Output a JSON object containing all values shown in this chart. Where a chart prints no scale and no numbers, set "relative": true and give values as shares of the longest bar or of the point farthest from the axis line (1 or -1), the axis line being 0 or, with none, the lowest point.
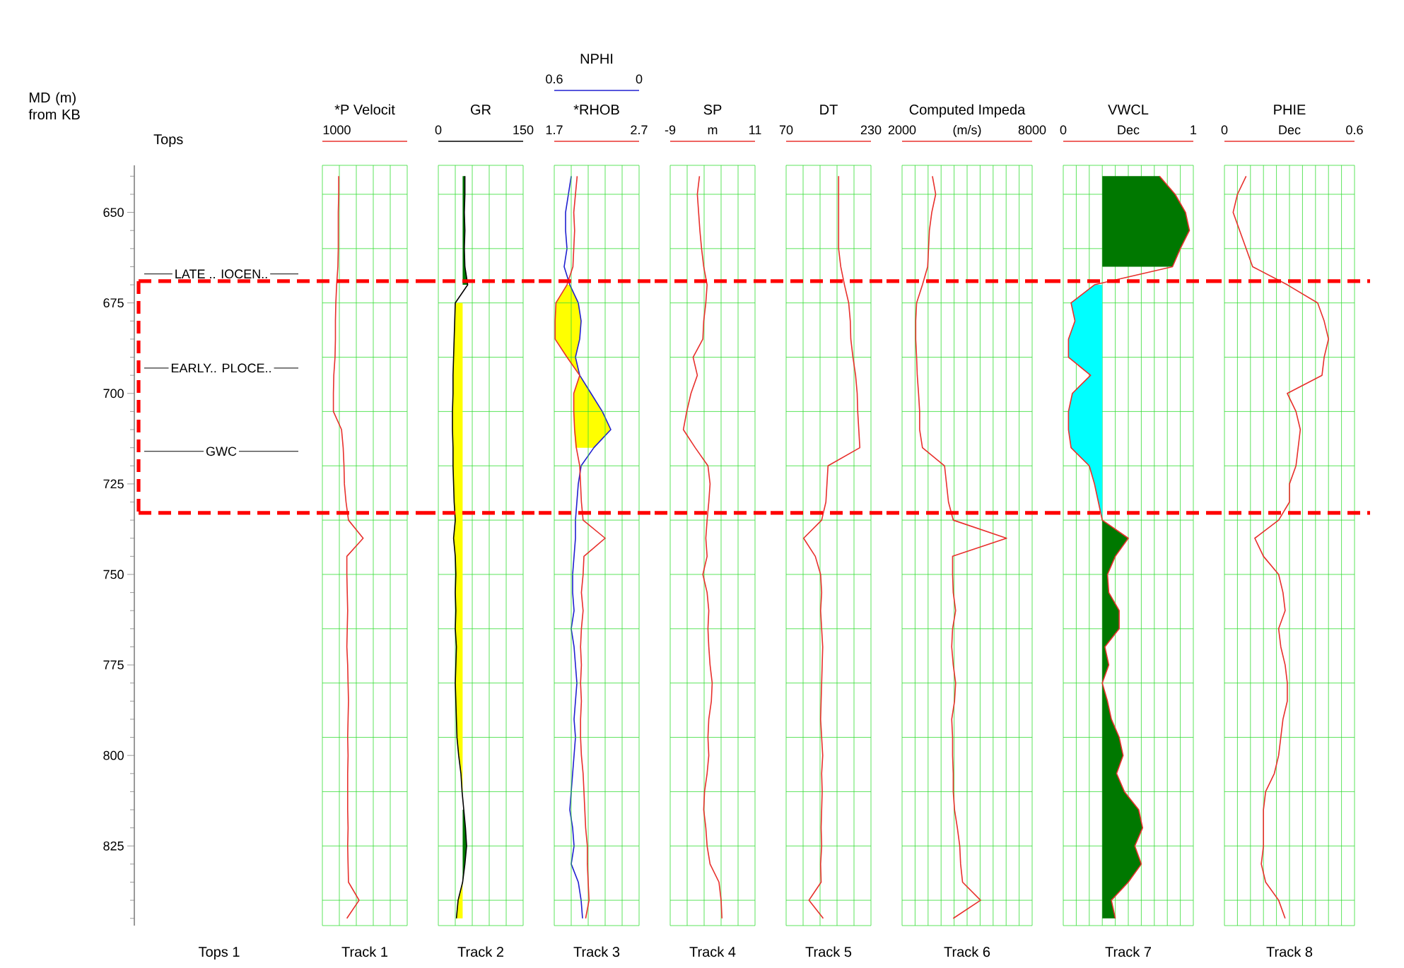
{
  "chart_data": [
    {
      "type": "other",
      "title": "Tops",
      "xlabel": "Tops 1"
    },
    {
      "type": "line",
      "orientation": "horizontal",
      "relative": true,
      "title": "*P Velocit",
      "xlabel": "Track 1",
      "ylabel": "MD (m) from KB",
      "annotations": [
        "1000"
      ],
      "x": [
        640,
        645,
        650,
        655,
        660,
        665,
        670,
        675,
        680,
        685,
        690,
        695,
        700,
        705,
        710,
        715,
        720,
        725,
        730,
        735,
        740,
        745,
        750,
        755,
        760,
        765,
        770,
        775,
        780,
        785,
        790,
        795,
        800,
        805,
        810,
        815,
        820,
        825,
        830,
        835,
        840,
        845
      ],
      "ylim": [
        847,
        637
      ],
      "yticks": [
        650,
        675,
        700,
        725,
        750,
        775,
        800,
        825,
        {
          "value": 645,
          "label": null
        },
        {
          "value": 660,
          "label": null
        },
        {
          "value": 675,
          "label": null
        },
        {
          "value": 690,
          "label": null
        },
        {
          "value": 705,
          "label": null
        },
        {
          "value": 720,
          "label": null
        },
        {
          "value": 735,
          "label": null
        },
        {
          "value": 750,
          "label": null
        },
        {
          "value": 765,
          "label": null
        },
        {
          "value": 780,
          "label": null
        },
        {
          "value": 795,
          "label": null
        },
        {
          "value": 810,
          "label": null
        },
        {
          "value": 825,
          "label": null
        },
        {
          "value": 840,
          "label": null
        }
      ],
      "tick_labels": "y",
      "grid": true,
      "ref_lines": [
        {
          "axis": "y",
          "value": 667,
          "label": "LATE .. IOCEN.."
        },
        {
          "axis": "y",
          "value": 693,
          "label": "EARLY.. PLOCE.."
        },
        {
          "axis": "y",
          "value": 716,
          "label": "GWC"
        },
        {
          "axis": "y",
          "value": 669,
          "color": "#ff0000",
          "line_style": "dashed"
        },
        {
          "axis": "y",
          "value": 733,
          "color": "#ff0000",
          "line_style": "dashed"
        }
      ],
      "series": [
        {
          "color": "#e8302c",
          "values": [
            0.4,
            0.4,
            0.39,
            0.39,
            0.39,
            0.38,
            0.35,
            0.33,
            0.32,
            0.32,
            0.31,
            0.28,
            0.27,
            0.27,
            0.47,
            0.51,
            0.53,
            0.54,
            0.58,
            0.64,
            1.0,
            0.6,
            0.6,
            0.61,
            0.62,
            0.61,
            0.6,
            0.62,
            0.63,
            0.64,
            0.63,
            0.62,
            0.63,
            0.62,
            0.62,
            0.62,
            0.63,
            0.62,
            0.63,
            0.64,
            0.9,
            0.6
          ]
        }
      ]
    },
    {
      "type": "line",
      "orientation": "horizontal",
      "title": "GR",
      "xlabel": "Track 2",
      "xlim": [
        0,
        150
      ],
      "xticks": [
        0,
        150
      ],
      "x": [
        640,
        645,
        650,
        655,
        660,
        665,
        670,
        675,
        680,
        685,
        690,
        695,
        700,
        705,
        710,
        715,
        720,
        725,
        730,
        735,
        740,
        745,
        750,
        755,
        760,
        765,
        770,
        775,
        780,
        785,
        790,
        795,
        800,
        805,
        810,
        815,
        820,
        825,
        830,
        835,
        840,
        845
      ],
      "ylim": [
        847,
        637
      ],
      "yticks": [
        {
          "value": 645,
          "label": null
        },
        {
          "value": 660,
          "label": null
        },
        {
          "value": 675,
          "label": null
        },
        {
          "value": 690,
          "label": null
        },
        {
          "value": 705,
          "label": null
        },
        {
          "value": 720,
          "label": null
        },
        {
          "value": 735,
          "label": null
        },
        {
          "value": 750,
          "label": null
        },
        {
          "value": 765,
          "label": null
        },
        {
          "value": 780,
          "label": null
        },
        {
          "value": 795,
          "label": null
        },
        {
          "value": 810,
          "label": null
        },
        {
          "value": 825,
          "label": null
        },
        {
          "value": 840,
          "label": null
        }
      ],
      "tick_labels": "x",
      "grid": true,
      "ref_lines": [
        {
          "axis": "y",
          "value": 669,
          "color": "#ff0000",
          "line_style": "dashed"
        },
        {
          "axis": "y",
          "value": 733,
          "color": "#ff0000",
          "line_style": "dashed"
        }
      ],
      "series": [
        {
          "color": "#007800",
          "values": [
            null,
            null,
            null,
            null,
            null,
            null,
            null,
            null,
            null,
            null,
            null,
            null,
            null,
            null,
            null,
            null,
            null,
            null,
            null,
            null,
            null,
            null,
            null,
            null,
            null,
            null,
            null,
            null,
            null,
            null,
            null,
            null,
            null,
            null,
            null,
            null,
            null,
            null,
            null,
            null,
            null,
            null
          ],
          "lower": [
            43,
            43,
            43,
            43,
            43,
            43,
            43,
            null,
            null,
            null,
            null,
            null,
            null,
            null,
            null,
            null,
            null,
            null,
            null,
            null,
            null,
            null,
            null,
            null,
            null,
            null,
            null,
            null,
            null,
            null,
            null,
            null,
            null,
            null,
            null,
            43,
            43,
            43,
            43,
            43,
            null,
            null
          ],
          "upper": [
            47,
            47,
            46,
            47,
            46,
            47,
            52,
            null,
            null,
            null,
            null,
            null,
            null,
            null,
            null,
            null,
            null,
            null,
            null,
            null,
            null,
            null,
            null,
            null,
            null,
            null,
            null,
            null,
            null,
            null,
            null,
            null,
            null,
            null,
            null,
            45,
            48,
            50,
            47,
            43,
            null,
            null
          ]
        },
        {
          "color": "#ffff00",
          "values": [
            null,
            null,
            null,
            null,
            null,
            null,
            null,
            null,
            null,
            null,
            null,
            null,
            null,
            null,
            null,
            null,
            null,
            null,
            null,
            null,
            null,
            null,
            null,
            null,
            null,
            null,
            null,
            null,
            null,
            null,
            null,
            null,
            null,
            null,
            null,
            null,
            null,
            null,
            null,
            null,
            null,
            null
          ],
          "lower": [
            null,
            null,
            null,
            null,
            null,
            null,
            null,
            30,
            29,
            28,
            27,
            26,
            26,
            25,
            25,
            26,
            26,
            27,
            28,
            30,
            27,
            30,
            31,
            30,
            31,
            30,
            32,
            31,
            30,
            31,
            32,
            33,
            36,
            40,
            42,
            null,
            null,
            null,
            null,
            43,
            35,
            32
          ],
          "upper": [
            null,
            null,
            null,
            null,
            null,
            null,
            null,
            43,
            43,
            43,
            43,
            43,
            43,
            43,
            43,
            43,
            43,
            43,
            43,
            43,
            43,
            43,
            43,
            43,
            43,
            43,
            43,
            43,
            43,
            43,
            43,
            43,
            43,
            43,
            43,
            null,
            null,
            null,
            null,
            43,
            43,
            43
          ]
        },
        {
          "color": "#000000",
          "values": [
            47,
            47,
            46,
            47,
            46,
            47,
            52,
            30,
            29,
            28,
            27,
            26,
            26,
            25,
            25,
            26,
            26,
            27,
            28,
            30,
            27,
            30,
            31,
            30,
            31,
            30,
            32,
            31,
            30,
            31,
            32,
            33,
            36,
            40,
            42,
            45,
            48,
            50,
            47,
            43,
            35,
            32
          ]
        }
      ]
    },
    {
      "type": "line",
      "orientation": "horizontal",
      "title": "*RHOB",
      "xlabel": "Track 3",
      "xlim": [
        1.7,
        2.7
      ],
      "xticks": [
        1.7,
        2.7
      ],
      "x2label": "NPHI",
      "x2lim": [
        0.6,
        0
      ],
      "x2ticks": [
        0.6,
        0
      ],
      "x": [
        640,
        645,
        650,
        655,
        660,
        665,
        670,
        675,
        680,
        685,
        690,
        695,
        700,
        705,
        710,
        715,
        720,
        725,
        730,
        735,
        740,
        745,
        750,
        755,
        760,
        765,
        770,
        775,
        780,
        785,
        790,
        795,
        800,
        805,
        810,
        815,
        820,
        825,
        830,
        835,
        840,
        845
      ],
      "ylim": [
        847,
        637
      ],
      "yticks": [
        {
          "value": 645,
          "label": null
        },
        {
          "value": 660,
          "label": null
        },
        {
          "value": 675,
          "label": null
        },
        {
          "value": 690,
          "label": null
        },
        {
          "value": 705,
          "label": null
        },
        {
          "value": 720,
          "label": null
        },
        {
          "value": 735,
          "label": null
        },
        {
          "value": 750,
          "label": null
        },
        {
          "value": 765,
          "label": null
        },
        {
          "value": 780,
          "label": null
        },
        {
          "value": 795,
          "label": null
        },
        {
          "value": 810,
          "label": null
        },
        {
          "value": 825,
          "label": null
        },
        {
          "value": 840,
          "label": null
        }
      ],
      "tick_labels": "x",
      "grid": true,
      "ref_lines": [
        {
          "axis": "y",
          "value": 669,
          "color": "#ff0000",
          "line_style": "dashed"
        },
        {
          "axis": "y",
          "value": 733,
          "color": "#ff0000",
          "line_style": "dashed"
        }
      ],
      "series": [
        {
          "axis": "x2",
          "color": "#ffff00",
          "values": [
            null,
            null,
            null,
            null,
            null,
            null,
            null,
            null,
            null,
            null,
            null,
            null,
            null,
            null,
            null,
            null,
            null,
            null,
            null,
            null,
            null,
            null,
            null,
            null,
            null,
            null,
            null,
            null,
            null,
            null,
            null,
            null,
            null,
            null,
            null,
            null,
            null,
            null,
            null,
            null,
            null,
            null
          ],
          "lower": [
            null,
            null,
            null,
            null,
            null,
            null,
            0.49,
            0.43,
            0.41,
            0.42,
            0.45,
            0.42,
            0.34,
            0.26,
            0.2,
            0.32,
            null,
            null,
            null,
            null,
            null,
            null,
            null,
            null,
            null,
            null,
            null,
            null,
            null,
            null,
            null,
            null,
            null,
            null,
            null,
            null,
            null,
            null,
            null,
            null,
            null,
            null
          ],
          "upper": [
            null,
            null,
            null,
            null,
            null,
            null,
            0.51,
            0.59,
            0.59,
            0.59,
            0.51,
            0.42,
            0.46,
            0.46,
            0.46,
            0.45,
            null,
            null,
            null,
            null,
            null,
            null,
            null,
            null,
            null,
            null,
            null,
            null,
            null,
            null,
            null,
            null,
            null,
            null,
            null,
            null,
            null,
            null,
            null,
            null,
            null,
            null
          ]
        },
        {
          "axis": "x2",
          "color": "#2020d0",
          "values": [
            0.48,
            0.5,
            0.52,
            0.52,
            0.51,
            0.53,
            0.49,
            0.43,
            0.41,
            0.42,
            0.45,
            0.42,
            0.34,
            0.26,
            0.2,
            0.32,
            0.41,
            0.43,
            0.44,
            0.45,
            0.45,
            0.46,
            0.47,
            0.47,
            0.46,
            0.48,
            0.46,
            0.45,
            0.44,
            0.45,
            0.46,
            0.45,
            0.46,
            0.47,
            0.48,
            0.49,
            0.47,
            0.46,
            0.48,
            0.43,
            0.41,
            0.4
          ]
        },
        {
          "color": "#e8302c",
          "values": [
            1.97,
            1.95,
            1.93,
            1.94,
            1.93,
            1.92,
            1.85,
            1.72,
            1.71,
            1.71,
            1.85,
            2.0,
            1.93,
            1.93,
            1.94,
            1.96,
            2.0,
            2.01,
            2.02,
            2.04,
            2.3,
            2.05,
            2.04,
            2.02,
            2.04,
            2.02,
            2.01,
            2.02,
            2.01,
            2.02,
            2.01,
            2.01,
            2.02,
            2.04,
            2.05,
            2.06,
            2.07,
            2.09,
            2.09,
            2.1,
            2.11,
            2.07
          ]
        }
      ]
    },
    {
      "type": "line",
      "orientation": "horizontal",
      "title": "SP",
      "xlabel": "Track 4",
      "xlim": [
        -9,
        11
      ],
      "xticks": [
        -9,
        {
          "value": 1,
          "label": "m"
        },
        11
      ],
      "x": [
        640,
        645,
        650,
        655,
        660,
        665,
        670,
        675,
        680,
        685,
        690,
        695,
        700,
        705,
        710,
        715,
        720,
        725,
        730,
        735,
        740,
        745,
        750,
        755,
        760,
        765,
        770,
        775,
        780,
        785,
        790,
        795,
        800,
        805,
        810,
        815,
        820,
        825,
        830,
        835,
        840,
        845
      ],
      "ylim": [
        847,
        637
      ],
      "yticks": [
        {
          "value": 645,
          "label": null
        },
        {
          "value": 660,
          "label": null
        },
        {
          "value": 675,
          "label": null
        },
        {
          "value": 690,
          "label": null
        },
        {
          "value": 705,
          "label": null
        },
        {
          "value": 720,
          "label": null
        },
        {
          "value": 735,
          "label": null
        },
        {
          "value": 750,
          "label": null
        },
        {
          "value": 765,
          "label": null
        },
        {
          "value": 780,
          "label": null
        },
        {
          "value": 795,
          "label": null
        },
        {
          "value": 810,
          "label": null
        },
        {
          "value": 825,
          "label": null
        },
        {
          "value": 840,
          "label": null
        }
      ],
      "tick_labels": "x",
      "grid": true,
      "ref_lines": [
        {
          "axis": "y",
          "value": 669,
          "color": "#ff0000",
          "line_style": "dashed"
        },
        {
          "axis": "y",
          "value": 733,
          "color": "#ff0000",
          "line_style": "dashed"
        }
      ],
      "series": [
        {
          "color": "#e8302c",
          "values": [
            -2.1,
            -2.6,
            -2.3,
            -2.0,
            -1.6,
            -1.1,
            -0.3,
            -0.6,
            -1.1,
            -1.3,
            -3.6,
            -2.6,
            -4.1,
            -5.1,
            -5.9,
            -3.1,
            -0.1,
            0.4,
            0.1,
            -0.3,
            -0.6,
            -0.3,
            -1.3,
            -0.3,
            0.1,
            -0.1,
            0.1,
            0.4,
            0.9,
            0.7,
            0.1,
            -0.1,
            0.1,
            -0.3,
            -0.9,
            -1.1,
            -0.6,
            -0.3,
            0.4,
            2.5,
            3.0,
            3.2
          ]
        }
      ]
    },
    {
      "type": "line",
      "orientation": "horizontal",
      "title": "DT",
      "xlabel": "Track 5",
      "xlim": [
        70,
        230
      ],
      "xticks": [
        70,
        230
      ],
      "x": [
        640,
        645,
        650,
        655,
        660,
        665,
        670,
        675,
        680,
        685,
        690,
        695,
        700,
        705,
        710,
        715,
        720,
        725,
        730,
        735,
        740,
        745,
        750,
        755,
        760,
        765,
        770,
        775,
        780,
        785,
        790,
        795,
        800,
        805,
        810,
        815,
        820,
        825,
        830,
        835,
        840,
        845
      ],
      "ylim": [
        847,
        637
      ],
      "yticks": [
        {
          "value": 645,
          "label": null
        },
        {
          "value": 660,
          "label": null
        },
        {
          "value": 675,
          "label": null
        },
        {
          "value": 690,
          "label": null
        },
        {
          "value": 705,
          "label": null
        },
        {
          "value": 720,
          "label": null
        },
        {
          "value": 735,
          "label": null
        },
        {
          "value": 750,
          "label": null
        },
        {
          "value": 765,
          "label": null
        },
        {
          "value": 780,
          "label": null
        },
        {
          "value": 795,
          "label": null
        },
        {
          "value": 810,
          "label": null
        },
        {
          "value": 825,
          "label": null
        },
        {
          "value": 840,
          "label": null
        }
      ],
      "tick_labels": "x",
      "grid": true,
      "ref_lines": [
        {
          "axis": "y",
          "value": 669,
          "color": "#ff0000",
          "line_style": "dashed"
        },
        {
          "axis": "y",
          "value": 733,
          "color": "#ff0000",
          "line_style": "dashed"
        }
      ],
      "series": [
        {
          "color": "#e8302c",
          "values": [
            169,
            169,
            169,
            169,
            169,
            173,
            180,
            188,
            191,
            192,
            196,
            201,
            204,
            205,
            207,
            209,
            149,
            147,
            145,
            137,
            103,
            125,
            135,
            137,
            135,
            137,
            139,
            138,
            137,
            136,
            135,
            137,
            139,
            137,
            138,
            137,
            136,
            137,
            135,
            136,
            113,
            140
          ]
        }
      ]
    },
    {
      "type": "line",
      "orientation": "horizontal",
      "title": "Computed Impeda",
      "xlabel": "Track 6",
      "xlim": [
        2000,
        8000
      ],
      "xticks": [
        2000,
        {
          "value": 5000,
          "label": "(m/s)"
        },
        8000
      ],
      "x": [
        640,
        645,
        650,
        655,
        660,
        665,
        670,
        675,
        680,
        685,
        690,
        695,
        700,
        705,
        710,
        715,
        720,
        725,
        730,
        735,
        740,
        745,
        750,
        755,
        760,
        765,
        770,
        775,
        780,
        785,
        790,
        795,
        800,
        805,
        810,
        815,
        820,
        825,
        830,
        835,
        840,
        845
      ],
      "ylim": [
        847,
        637
      ],
      "yticks": [
        {
          "value": 645,
          "label": null
        },
        {
          "value": 660,
          "label": null
        },
        {
          "value": 675,
          "label": null
        },
        {
          "value": 690,
          "label": null
        },
        {
          "value": 705,
          "label": null
        },
        {
          "value": 720,
          "label": null
        },
        {
          "value": 735,
          "label": null
        },
        {
          "value": 750,
          "label": null
        },
        {
          "value": 765,
          "label": null
        },
        {
          "value": 780,
          "label": null
        },
        {
          "value": 795,
          "label": null
        },
        {
          "value": 810,
          "label": null
        },
        {
          "value": 825,
          "label": null
        },
        {
          "value": 840,
          "label": null
        }
      ],
      "tick_labels": "x",
      "grid": true,
      "ref_lines": [
        {
          "axis": "y",
          "value": 669,
          "color": "#ff0000",
          "line_style": "dashed"
        },
        {
          "axis": "y",
          "value": 733,
          "color": "#ff0000",
          "line_style": "dashed"
        }
      ],
      "series": [
        {
          "color": "#e8302c",
          "values": [
            3400,
            3550,
            3370,
            3260,
            3220,
            3180,
            2940,
            2670,
            2630,
            2630,
            2670,
            2700,
            2760,
            2810,
            2810,
            2940,
            3960,
            4050,
            4140,
            4360,
            6820,
            4330,
            4330,
            4360,
            4470,
            4330,
            4290,
            4360,
            4470,
            4420,
            4290,
            4330,
            4330,
            4360,
            4360,
            4420,
            4550,
            4660,
            4700,
            4790,
            5620,
            4360
          ]
        }
      ]
    },
    {
      "type": "line",
      "orientation": "horizontal",
      "title": "VWCL",
      "xlabel": "Track 7",
      "xlim": [
        0,
        1
      ],
      "xticks": [
        0,
        {
          "value": 0.5,
          "label": "Dec"
        },
        1
      ],
      "x": [
        640,
        645,
        650,
        655,
        660,
        665,
        670,
        675,
        680,
        685,
        690,
        695,
        700,
        705,
        710,
        715,
        720,
        725,
        730,
        735,
        740,
        745,
        750,
        755,
        760,
        765,
        770,
        775,
        780,
        785,
        790,
        795,
        800,
        805,
        810,
        815,
        820,
        825,
        830,
        835,
        840,
        845
      ],
      "ylim": [
        847,
        637
      ],
      "yticks": [
        {
          "value": 645,
          "label": null
        },
        {
          "value": 660,
          "label": null
        },
        {
          "value": 675,
          "label": null
        },
        {
          "value": 690,
          "label": null
        },
        {
          "value": 705,
          "label": null
        },
        {
          "value": 720,
          "label": null
        },
        {
          "value": 735,
          "label": null
        },
        {
          "value": 750,
          "label": null
        },
        {
          "value": 765,
          "label": null
        },
        {
          "value": 780,
          "label": null
        },
        {
          "value": 795,
          "label": null
        },
        {
          "value": 810,
          "label": null
        },
        {
          "value": 825,
          "label": null
        },
        {
          "value": 840,
          "label": null
        }
      ],
      "tick_labels": "x",
      "grid": true,
      "ref_lines": [
        {
          "axis": "y",
          "value": 669,
          "color": "#ff0000",
          "line_style": "dashed"
        },
        {
          "axis": "y",
          "value": 733,
          "color": "#ff0000",
          "line_style": "dashed"
        }
      ],
      "series": [
        {
          "color": "#007800",
          "values": [
            null,
            null,
            null,
            null,
            null,
            null,
            null,
            null,
            null,
            null,
            null,
            null,
            null,
            null,
            null,
            null,
            null,
            null,
            null,
            null,
            null,
            null,
            null,
            null,
            null,
            null,
            null,
            null,
            null,
            null,
            null,
            null,
            null,
            null,
            null,
            null,
            null,
            null,
            null,
            null,
            null,
            null
          ],
          "lower": [
            0.3,
            0.3,
            0.3,
            0.3,
            0.3,
            0.3,
            null,
            null,
            null,
            null,
            null,
            null,
            null,
            null,
            null,
            null,
            null,
            null,
            null,
            0.3,
            0.3,
            0.3,
            0.3,
            0.3,
            0.3,
            0.3,
            0.3,
            0.3,
            0.3,
            0.3,
            0.3,
            0.3,
            0.3,
            0.3,
            0.3,
            0.3,
            0.3,
            0.3,
            0.3,
            0.3,
            0.3,
            0.3
          ],
          "upper": [
            0.74,
            0.86,
            0.94,
            0.97,
            0.9,
            0.84,
            null,
            null,
            null,
            null,
            null,
            null,
            null,
            null,
            null,
            null,
            null,
            null,
            null,
            0.3,
            0.5,
            0.4,
            0.34,
            0.35,
            0.43,
            0.43,
            0.32,
            0.35,
            0.3,
            0.34,
            0.37,
            0.43,
            0.46,
            0.41,
            0.47,
            0.58,
            0.61,
            0.55,
            0.6,
            0.5,
            0.37,
            0.4
          ]
        },
        {
          "color": "#00ffff",
          "values": [
            null,
            null,
            null,
            null,
            null,
            null,
            null,
            null,
            null,
            null,
            null,
            null,
            null,
            null,
            null,
            null,
            null,
            null,
            null,
            null,
            null,
            null,
            null,
            null,
            null,
            null,
            null,
            null,
            null,
            null,
            null,
            null,
            null,
            null,
            null,
            null,
            null,
            null,
            null,
            null,
            null,
            null
          ],
          "lower": [
            null,
            null,
            null,
            null,
            null,
            null,
            0.24,
            0.06,
            0.09,
            0.04,
            0.04,
            0.21,
            0.07,
            0.04,
            0.04,
            0.06,
            0.2,
            0.24,
            0.27,
            0.3,
            null,
            null,
            null,
            null,
            null,
            null,
            null,
            null,
            null,
            null,
            null,
            null,
            null,
            null,
            null,
            null,
            null,
            null,
            null,
            null,
            null,
            null
          ],
          "upper": [
            null,
            null,
            null,
            null,
            null,
            null,
            0.3,
            0.3,
            0.3,
            0.3,
            0.3,
            0.3,
            0.3,
            0.3,
            0.3,
            0.3,
            0.3,
            0.3,
            0.3,
            0.3,
            null,
            null,
            null,
            null,
            null,
            null,
            null,
            null,
            null,
            null,
            null,
            null,
            null,
            null,
            null,
            null,
            null,
            null,
            null,
            null,
            null,
            null
          ]
        },
        {
          "color": "#e8302c",
          "values": [
            0.74,
            0.86,
            0.94,
            0.97,
            0.9,
            0.84,
            0.24,
            0.06,
            0.09,
            0.04,
            0.04,
            0.21,
            0.07,
            0.04,
            0.04,
            0.06,
            0.2,
            0.24,
            0.27,
            0.3,
            0.5,
            0.4,
            0.34,
            0.35,
            0.43,
            0.43,
            0.32,
            0.35,
            0.3,
            0.34,
            0.37,
            0.43,
            0.46,
            0.41,
            0.47,
            0.58,
            0.61,
            0.55,
            0.6,
            0.5,
            0.37,
            0.4
          ]
        }
      ]
    },
    {
      "type": "line",
      "orientation": "horizontal",
      "title": "PHIE",
      "xlabel": "Track 8",
      "xlim": [
        0,
        0.6
      ],
      "xticks": [
        0,
        {
          "value": 0.3,
          "label": "Dec"
        },
        0.6
      ],
      "x": [
        640,
        645,
        650,
        655,
        660,
        665,
        670,
        675,
        680,
        685,
        690,
        695,
        700,
        705,
        710,
        715,
        720,
        725,
        730,
        735,
        740,
        745,
        750,
        755,
        760,
        765,
        770,
        775,
        780,
        785,
        790,
        795,
        800,
        805,
        810,
        815,
        820,
        825,
        830,
        835,
        840,
        845
      ],
      "ylim": [
        847,
        637
      ],
      "yticks": [
        {
          "value": 645,
          "label": null
        },
        {
          "value": 660,
          "label": null
        },
        {
          "value": 675,
          "label": null
        },
        {
          "value": 690,
          "label": null
        },
        {
          "value": 705,
          "label": null
        },
        {
          "value": 720,
          "label": null
        },
        {
          "value": 735,
          "label": null
        },
        {
          "value": 750,
          "label": null
        },
        {
          "value": 765,
          "label": null
        },
        {
          "value": 780,
          "label": null
        },
        {
          "value": 795,
          "label": null
        },
        {
          "value": 810,
          "label": null
        },
        {
          "value": 825,
          "label": null
        },
        {
          "value": 840,
          "label": null
        }
      ],
      "tick_labels": "x",
      "grid": true,
      "ref_lines": [
        {
          "axis": "y",
          "value": 669,
          "color": "#ff0000",
          "line_style": "dashed"
        },
        {
          "axis": "y",
          "value": 733,
          "color": "#ff0000",
          "line_style": "dashed"
        }
      ],
      "series": [
        {
          "color": "#e8302c",
          "values": [
            0.1,
            0.06,
            0.04,
            0.07,
            0.1,
            0.13,
            0.29,
            0.43,
            0.46,
            0.48,
            0.46,
            0.45,
            0.29,
            0.33,
            0.35,
            0.34,
            0.33,
            0.3,
            0.3,
            0.25,
            0.14,
            0.18,
            0.25,
            0.27,
            0.28,
            0.25,
            0.26,
            0.28,
            0.29,
            0.29,
            0.27,
            0.26,
            0.25,
            0.23,
            0.19,
            0.18,
            0.18,
            0.18,
            0.17,
            0.19,
            0.25,
            0.28
          ]
        }
      ]
    }
  ]
}
